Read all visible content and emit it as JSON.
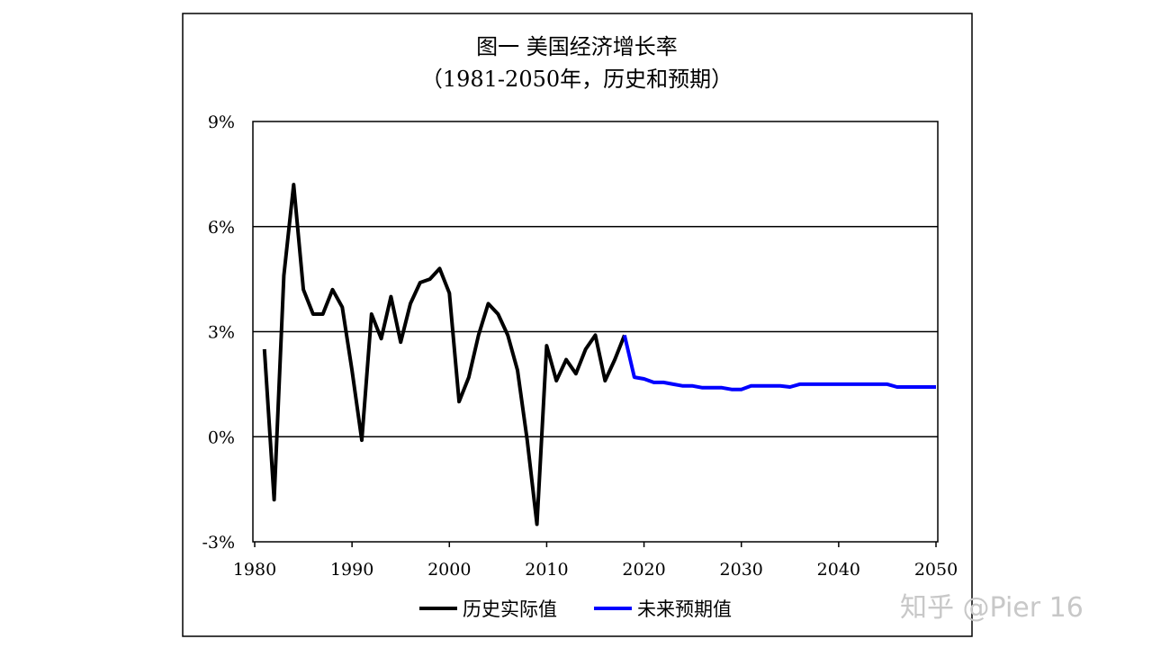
{
  "chart_data": {
    "type": "line",
    "title": "图一 美国经济增长率",
    "subtitle": "（1981-2050年，历史和预期）",
    "xlabel": "",
    "ylabel": "",
    "xlim": [
      1980,
      2050
    ],
    "ylim": [
      -3,
      9
    ],
    "x_ticks": [
      1980,
      1990,
      2000,
      2010,
      2020,
      2030,
      2040,
      2050
    ],
    "x_tick_labels": [
      "1980",
      "1990",
      "2000",
      "2010",
      "2020",
      "2030",
      "2040",
      "2050"
    ],
    "y_ticks": [
      -3,
      0,
      3,
      6,
      9
    ],
    "y_tick_labels": [
      "-3%",
      "0%",
      "3%",
      "6%",
      "9%"
    ],
    "grid": "horizontal",
    "legend_placement": "bottom",
    "series": [
      {
        "name": "历史实际值",
        "color": "#000000",
        "x": [
          1981,
          1982,
          1983,
          1984,
          1985,
          1986,
          1987,
          1988,
          1989,
          1990,
          1991,
          1992,
          1993,
          1994,
          1995,
          1996,
          1997,
          1998,
          1999,
          2000,
          2001,
          2002,
          2003,
          2004,
          2005,
          2006,
          2007,
          2008,
          2009,
          2010,
          2011,
          2012,
          2013,
          2014,
          2015,
          2016,
          2017,
          2018
        ],
        "values": [
          2.5,
          -1.8,
          4.6,
          7.2,
          4.2,
          3.5,
          3.5,
          4.2,
          3.7,
          1.9,
          -0.1,
          3.5,
          2.8,
          4.0,
          2.7,
          3.8,
          4.4,
          4.5,
          4.8,
          4.1,
          1.0,
          1.7,
          2.9,
          3.8,
          3.5,
          2.9,
          1.9,
          -0.1,
          -2.5,
          2.6,
          1.6,
          2.2,
          1.8,
          2.5,
          2.9,
          1.6,
          2.2,
          2.9
        ]
      },
      {
        "name": "未来预期值",
        "color": "#0000ff",
        "x": [
          2018,
          2019,
          2020,
          2021,
          2022,
          2023,
          2024,
          2025,
          2026,
          2027,
          2028,
          2029,
          2030,
          2031,
          2032,
          2033,
          2034,
          2035,
          2036,
          2037,
          2038,
          2039,
          2040,
          2041,
          2042,
          2043,
          2044,
          2045,
          2046,
          2047,
          2048,
          2049,
          2050
        ],
        "values": [
          2.9,
          1.7,
          1.65,
          1.55,
          1.55,
          1.5,
          1.45,
          1.45,
          1.4,
          1.4,
          1.4,
          1.35,
          1.35,
          1.45,
          1.45,
          1.45,
          1.45,
          1.42,
          1.5,
          1.5,
          1.5,
          1.5,
          1.5,
          1.5,
          1.5,
          1.5,
          1.5,
          1.5,
          1.42,
          1.42,
          1.42,
          1.42,
          1.42
        ]
      }
    ]
  },
  "watermark": "知乎 @Pier 16"
}
